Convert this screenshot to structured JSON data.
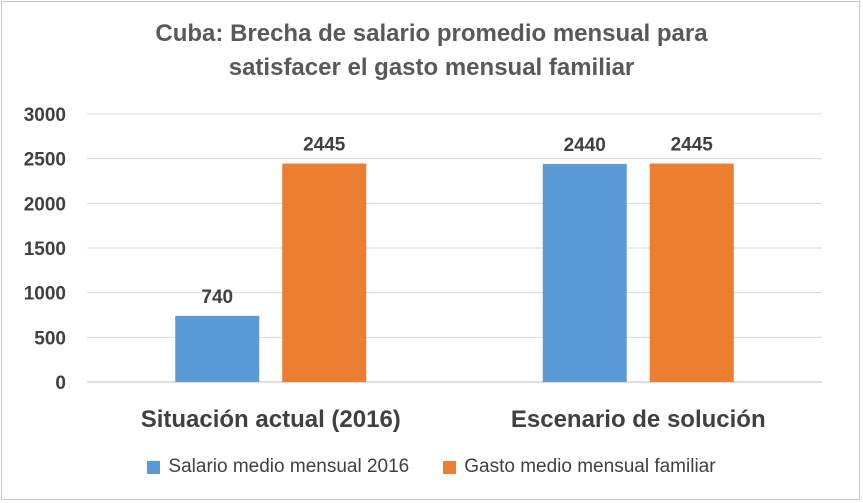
{
  "title_lines": [
    "Cuba: Brecha de salario promedio mensual para",
    "satisfacer el gasto mensual familiar"
  ],
  "chart_data": {
    "type": "bar",
    "title": "Cuba: Brecha de salario promedio mensual para satisfacer el gasto mensual familiar",
    "categories": [
      "Situación actual (2016)",
      "Escenario de solución"
    ],
    "series": [
      {
        "name": "Salario medio mensual 2016",
        "values": [
          740,
          2440
        ],
        "color": "#5b9bd5"
      },
      {
        "name": "Gasto medio mensual familiar",
        "values": [
          2445,
          2445
        ],
        "color": "#ed7d31"
      }
    ],
    "ylim": [
      0,
      3000
    ],
    "yticks": [
      0,
      500,
      1000,
      1500,
      2000,
      2500,
      3000
    ],
    "grid": true,
    "legend": "bottom",
    "xlabel": "",
    "ylabel": ""
  }
}
